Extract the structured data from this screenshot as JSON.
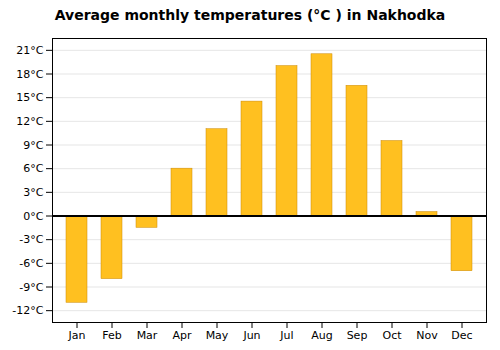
{
  "chart_data": {
    "type": "bar",
    "title": "Average monthly temperatures (°C ) in Nakhodka",
    "categories": [
      "Jan",
      "Feb",
      "Mar",
      "Apr",
      "May",
      "Jun",
      "Jul",
      "Aug",
      "Sep",
      "Oct",
      "Nov",
      "Dec"
    ],
    "values": [
      -11,
      -8,
      -1.5,
      6,
      11,
      14.5,
      19,
      20.5,
      16.5,
      9.5,
      0.5,
      -7
    ],
    "color": "#FFC020",
    "ylim": [
      -13.5,
      22.5
    ],
    "yticks": [
      {
        "value": -12,
        "label": "-12°C"
      },
      {
        "value": -9,
        "label": "-9°C"
      },
      {
        "value": -6,
        "label": "-6°C"
      },
      {
        "value": -3,
        "label": "-3°C"
      },
      {
        "value": 0,
        "label": "0°C"
      },
      {
        "value": 3,
        "label": "3°C"
      },
      {
        "value": 6,
        "label": "6°C"
      },
      {
        "value": 9,
        "label": "9°C"
      },
      {
        "value": 12,
        "label": "12°C"
      },
      {
        "value": 15,
        "label": "15°C"
      },
      {
        "value": 18,
        "label": "18°C"
      },
      {
        "value": 21,
        "label": "21°C"
      }
    ],
    "grid": true
  }
}
